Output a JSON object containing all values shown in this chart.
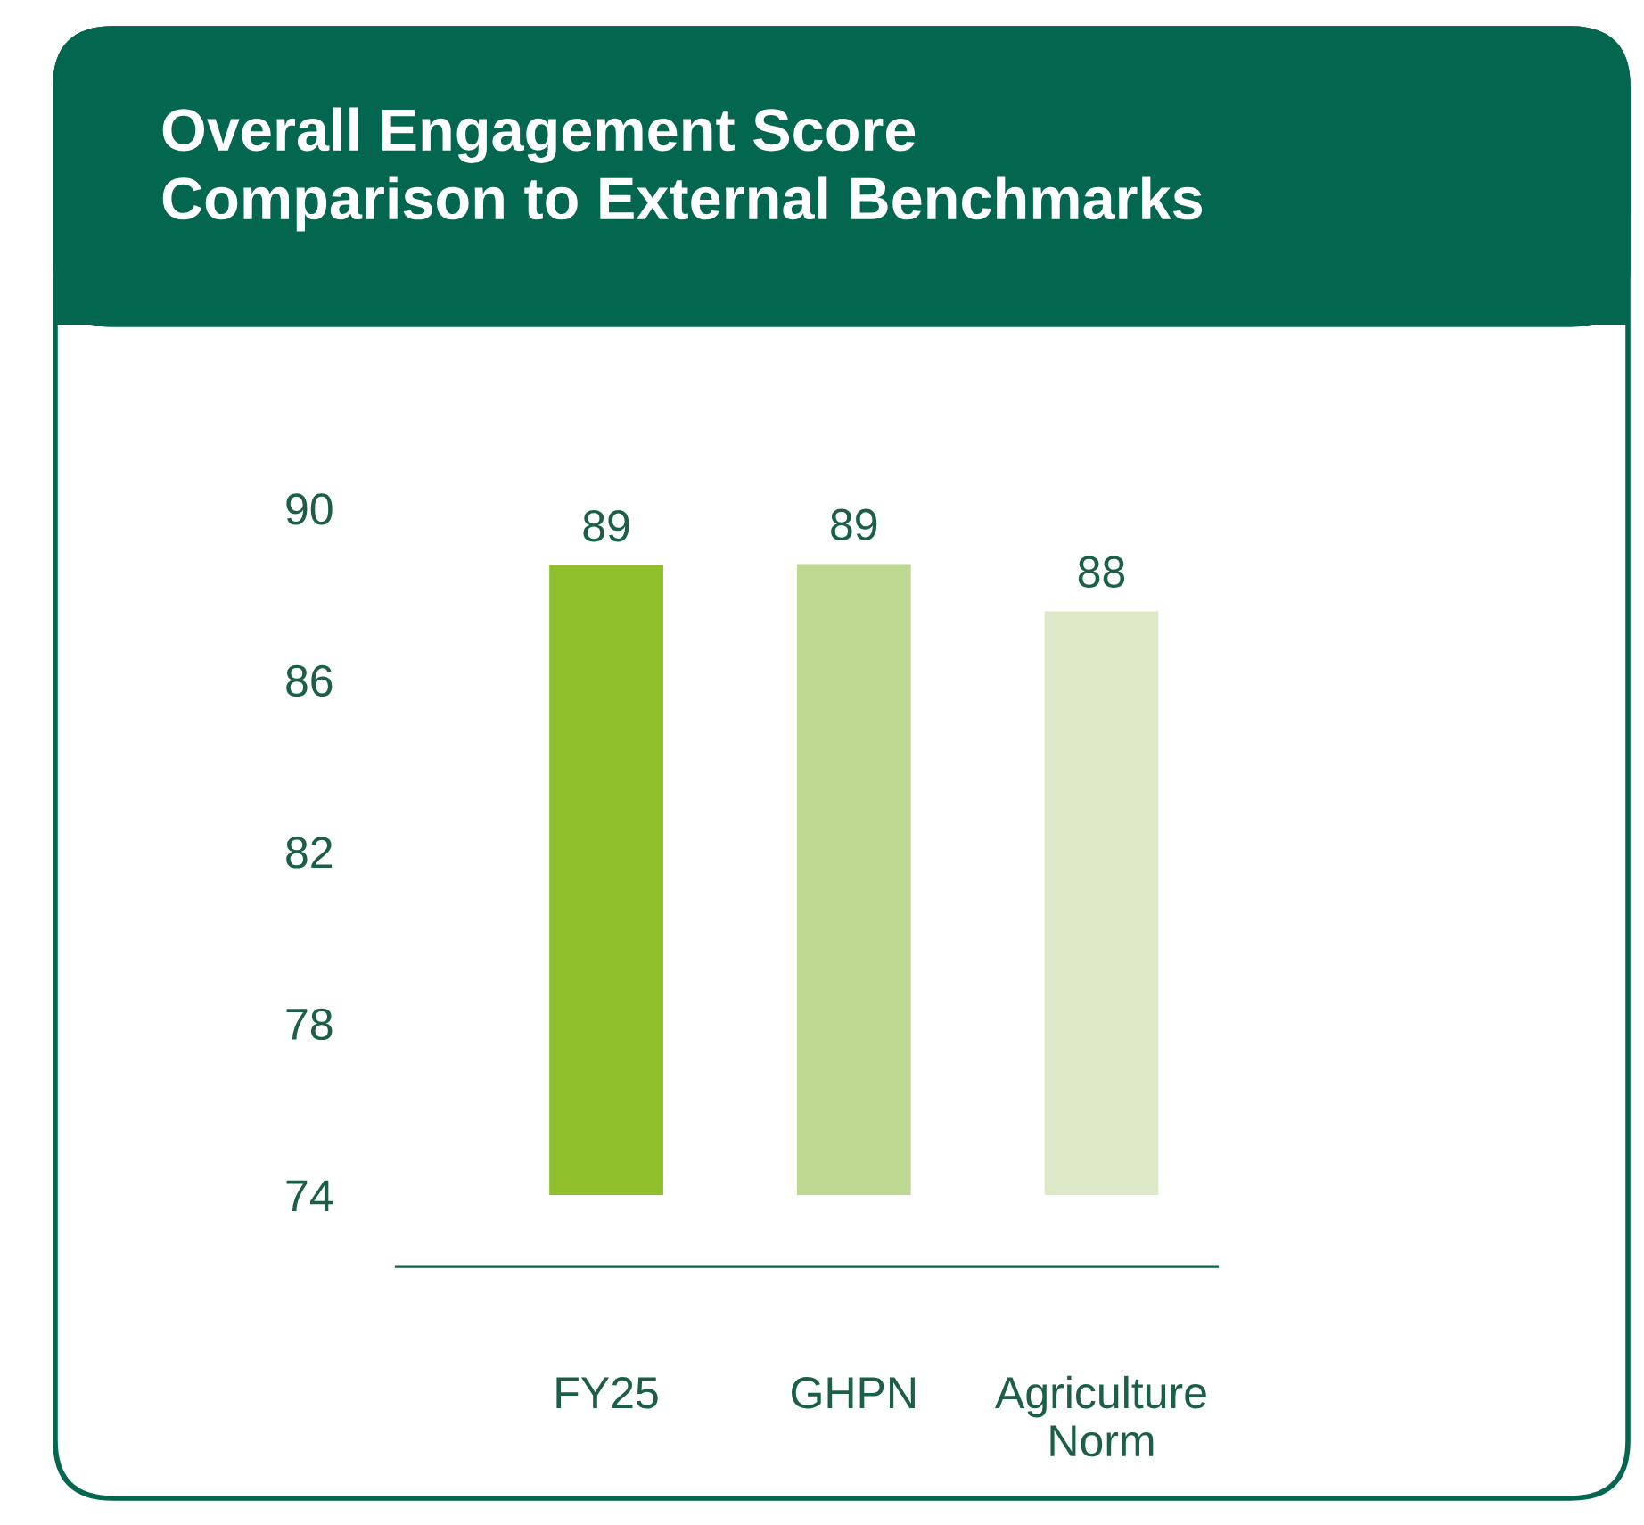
{
  "chart_data": {
    "type": "bar",
    "title": "Overall Engagement Score\nComparison to External Benchmarks",
    "categories": [
      "FY25",
      "GHPN",
      "Agriculture\nNorm"
    ],
    "values": [
      88.67,
      88.7,
      87.6
    ],
    "value_labels": [
      "89",
      "89",
      "88"
    ],
    "colors": [
      "#8fbf2a",
      "#bdd891",
      "#dde9c6"
    ],
    "ylim": [
      74,
      90
    ],
    "yticks": [
      74,
      78,
      82,
      86,
      90
    ],
    "grid": false,
    "legend": false
  }
}
